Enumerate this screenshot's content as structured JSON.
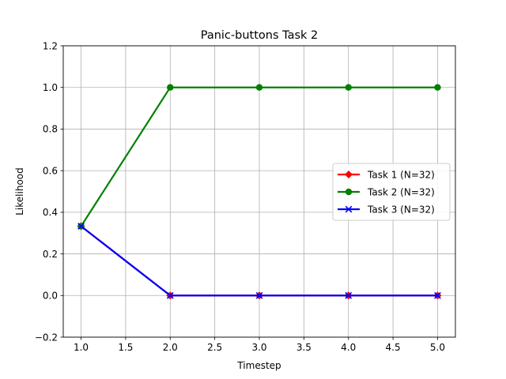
{
  "chart_data": {
    "type": "line",
    "title": "Panic-buttons Task 2",
    "xlabel": "Timestep",
    "ylabel": "Likelihood",
    "xlim": [
      0.8,
      5.2
    ],
    "ylim": [
      -0.2,
      1.2
    ],
    "xticks": [
      1.0,
      1.5,
      2.0,
      2.5,
      3.0,
      3.5,
      4.0,
      4.5,
      5.0
    ],
    "xtick_labels": [
      "1.0",
      "1.5",
      "2.0",
      "2.5",
      "3.0",
      "3.5",
      "4.0",
      "4.5",
      "5.0"
    ],
    "yticks": [
      -0.2,
      0.0,
      0.2,
      0.4,
      0.6,
      0.8,
      1.0,
      1.2
    ],
    "ytick_labels": [
      "−0.2",
      "0.0",
      "0.2",
      "0.4",
      "0.6",
      "0.8",
      "1.0",
      "1.2"
    ],
    "grid": true,
    "legend_position": "center-right",
    "x": [
      1,
      2,
      3,
      4,
      5
    ],
    "series": [
      {
        "name": "Task 1 (N=32)",
        "values": [
          0.333,
          0.0,
          0.0,
          0.0,
          0.0
        ],
        "color": "#ff0000",
        "marker": "diamond"
      },
      {
        "name": "Task 2 (N=32)",
        "values": [
          0.333,
          1.0,
          1.0,
          1.0,
          1.0
        ],
        "color": "#008000",
        "marker": "circle"
      },
      {
        "name": "Task 3 (N=32)",
        "values": [
          0.333,
          0.0,
          0.0,
          0.0,
          0.0
        ],
        "color": "#0000ff",
        "marker": "x"
      }
    ]
  }
}
